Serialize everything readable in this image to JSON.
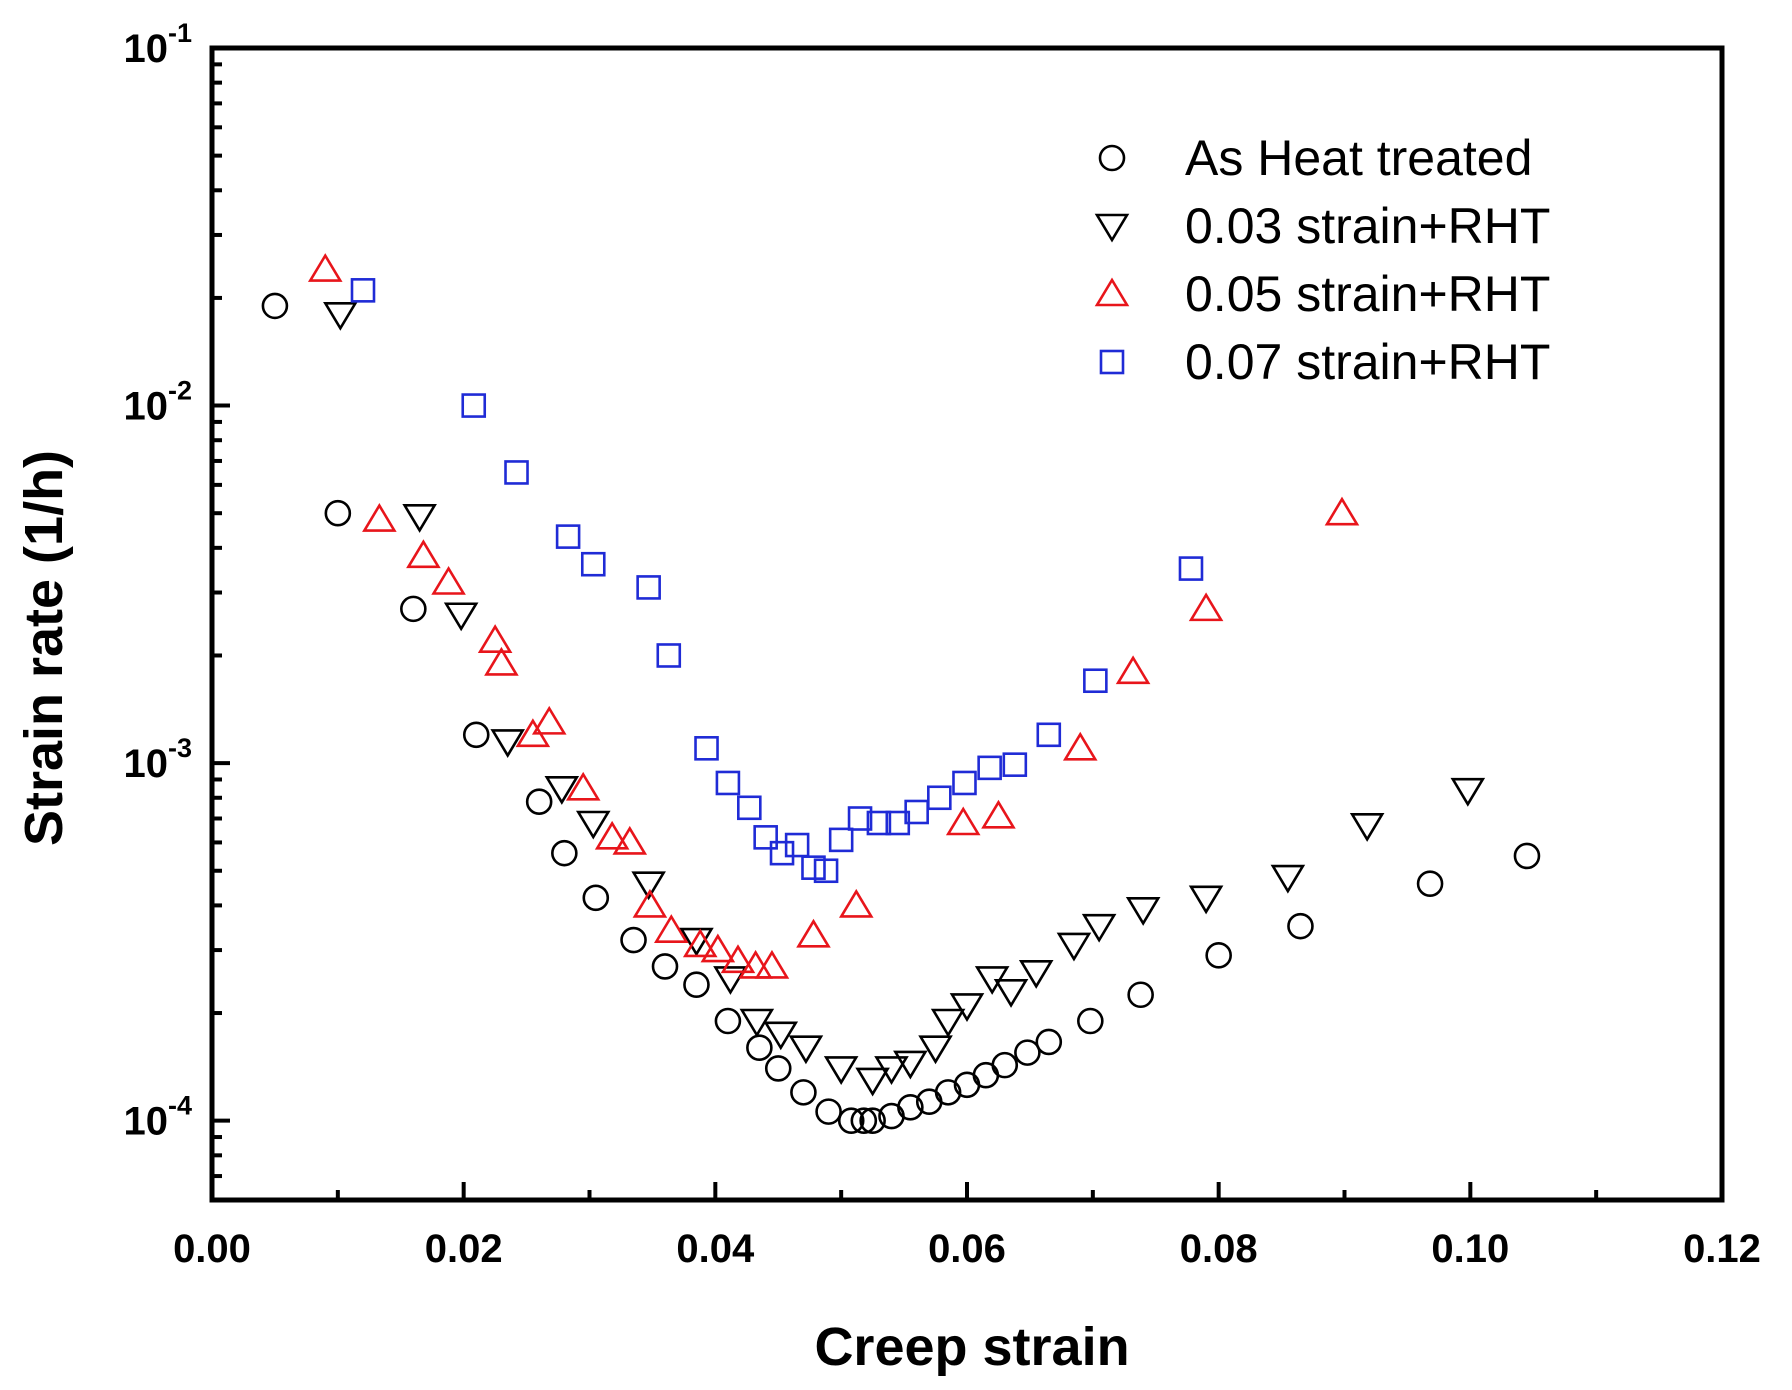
{
  "chart_data": {
    "type": "scatter",
    "title": "",
    "xlabel": "Creep strain",
    "ylabel": "Strain rate  (1/h)",
    "x_scale": "linear",
    "y_scale": "log",
    "xlim": [
      0.0,
      0.12
    ],
    "ylim": [
      6e-05,
      0.1
    ],
    "x_ticks": [
      0.0,
      0.02,
      0.04,
      0.06,
      0.08,
      0.1,
      0.12
    ],
    "x_tick_labels": [
      "0.00",
      "0.02",
      "0.04",
      "0.06",
      "0.08",
      "0.10",
      "0.12"
    ],
    "y_ticks": [
      0.0001,
      0.001,
      0.01,
      0.1
    ],
    "y_tick_labels": [
      {
        "base": "10",
        "exp": "-4"
      },
      {
        "base": "10",
        "exp": "-3"
      },
      {
        "base": "10",
        "exp": "-2"
      },
      {
        "base": "10",
        "exp": "-1"
      }
    ],
    "grid": false,
    "legend_position": "top-right",
    "series": [
      {
        "name": "As Heat treated",
        "marker": "circle",
        "color": "#000000",
        "points": [
          [
            0.005,
            0.019
          ],
          [
            0.01,
            0.005
          ],
          [
            0.016,
            0.0027
          ],
          [
            0.021,
            0.0012
          ],
          [
            0.026,
            0.00078
          ],
          [
            0.028,
            0.00056
          ],
          [
            0.0305,
            0.00042
          ],
          [
            0.0335,
            0.00032
          ],
          [
            0.036,
            0.00027
          ],
          [
            0.0385,
            0.00024
          ],
          [
            0.041,
            0.00019
          ],
          [
            0.0435,
            0.00016
          ],
          [
            0.045,
            0.00014
          ],
          [
            0.047,
            0.00012
          ],
          [
            0.049,
            0.000106
          ],
          [
            0.0508,
            0.0001
          ],
          [
            0.0518,
            0.0001
          ],
          [
            0.0525,
            0.0001
          ],
          [
            0.054,
            0.000103
          ],
          [
            0.0555,
            0.000109
          ],
          [
            0.057,
            0.000113
          ],
          [
            0.0585,
            0.00012
          ],
          [
            0.06,
            0.000126
          ],
          [
            0.0615,
            0.000134
          ],
          [
            0.063,
            0.000143
          ],
          [
            0.0648,
            0.000155
          ],
          [
            0.0665,
            0.000166
          ],
          [
            0.0698,
            0.00019
          ],
          [
            0.0738,
            0.000225
          ],
          [
            0.08,
            0.00029
          ],
          [
            0.0865,
            0.00035
          ],
          [
            0.0968,
            0.00046
          ],
          [
            0.1045,
            0.00055
          ]
        ]
      },
      {
        "name": "0.03 strain+RHT",
        "marker": "triangle-down",
        "color": "#000000",
        "points": [
          [
            0.0102,
            0.018
          ],
          [
            0.0165,
            0.0049
          ],
          [
            0.0198,
            0.0026
          ],
          [
            0.0235,
            0.00115
          ],
          [
            0.0278,
            0.00085
          ],
          [
            0.0303,
            0.00068
          ],
          [
            0.0347,
            0.00046
          ],
          [
            0.0385,
            0.00032
          ],
          [
            0.0412,
            0.00025
          ],
          [
            0.0433,
            0.00019
          ],
          [
            0.0452,
            0.000175
          ],
          [
            0.0472,
            0.00016
          ],
          [
            0.05,
            0.00014
          ],
          [
            0.0525,
            0.00013
          ],
          [
            0.054,
            0.00014
          ],
          [
            0.0555,
            0.000145
          ],
          [
            0.0575,
            0.00016
          ],
          [
            0.0585,
            0.00019
          ],
          [
            0.06,
            0.00021
          ],
          [
            0.062,
            0.00025
          ],
          [
            0.0635,
            0.00023
          ],
          [
            0.0655,
            0.00026
          ],
          [
            0.0685,
            0.00031
          ],
          [
            0.0705,
            0.00035
          ],
          [
            0.074,
            0.00039
          ],
          [
            0.079,
            0.00042
          ],
          [
            0.0855,
            0.00048
          ],
          [
            0.0918,
            0.00067
          ],
          [
            0.0998,
            0.00084
          ]
        ]
      },
      {
        "name": "0.05 strain+RHT",
        "marker": "triangle-up",
        "color": "#e8151b",
        "points": [
          [
            0.009,
            0.024
          ],
          [
            0.0133,
            0.0048
          ],
          [
            0.0168,
            0.0038
          ],
          [
            0.0188,
            0.0032
          ],
          [
            0.0225,
            0.0022
          ],
          [
            0.023,
            0.0019
          ],
          [
            0.0255,
            0.0012
          ],
          [
            0.0268,
            0.0013
          ],
          [
            0.0295,
            0.00085
          ],
          [
            0.0318,
            0.00062
          ],
          [
            0.0332,
            0.0006
          ],
          [
            0.0348,
            0.0004
          ],
          [
            0.0365,
            0.00034
          ],
          [
            0.0388,
            0.00031
          ],
          [
            0.0402,
            0.0003
          ],
          [
            0.0418,
            0.00028
          ],
          [
            0.0432,
            0.00027
          ],
          [
            0.0445,
            0.00027
          ],
          [
            0.0478,
            0.00033
          ],
          [
            0.0512,
            0.0004
          ],
          [
            0.0597,
            0.00068
          ],
          [
            0.0625,
            0.00071
          ],
          [
            0.069,
            0.0011
          ],
          [
            0.0732,
            0.0018
          ],
          [
            0.079,
            0.0027
          ],
          [
            0.0898,
            0.005
          ]
        ]
      },
      {
        "name": "0.07 strain+RHT",
        "marker": "square",
        "color": "#1f2bd6",
        "points": [
          [
            0.012,
            0.021
          ],
          [
            0.0208,
            0.01
          ],
          [
            0.0242,
            0.0065
          ],
          [
            0.0283,
            0.0043
          ],
          [
            0.0303,
            0.0036
          ],
          [
            0.0347,
            0.0031
          ],
          [
            0.0363,
            0.002
          ],
          [
            0.0393,
            0.0011
          ],
          [
            0.041,
            0.00088
          ],
          [
            0.0427,
            0.00075
          ],
          [
            0.044,
            0.00062
          ],
          [
            0.0453,
            0.00056
          ],
          [
            0.0465,
            0.00059
          ],
          [
            0.0478,
            0.00051
          ],
          [
            0.0488,
            0.0005
          ],
          [
            0.05,
            0.00061
          ],
          [
            0.0515,
            0.0007
          ],
          [
            0.053,
            0.00068
          ],
          [
            0.0545,
            0.00068
          ],
          [
            0.056,
            0.00073
          ],
          [
            0.0578,
            0.0008
          ],
          [
            0.0598,
            0.00088
          ],
          [
            0.0618,
            0.00097
          ],
          [
            0.0638,
            0.00099
          ],
          [
            0.0665,
            0.0012
          ],
          [
            0.0702,
            0.0017
          ],
          [
            0.0778,
            0.0035
          ]
        ]
      }
    ]
  }
}
